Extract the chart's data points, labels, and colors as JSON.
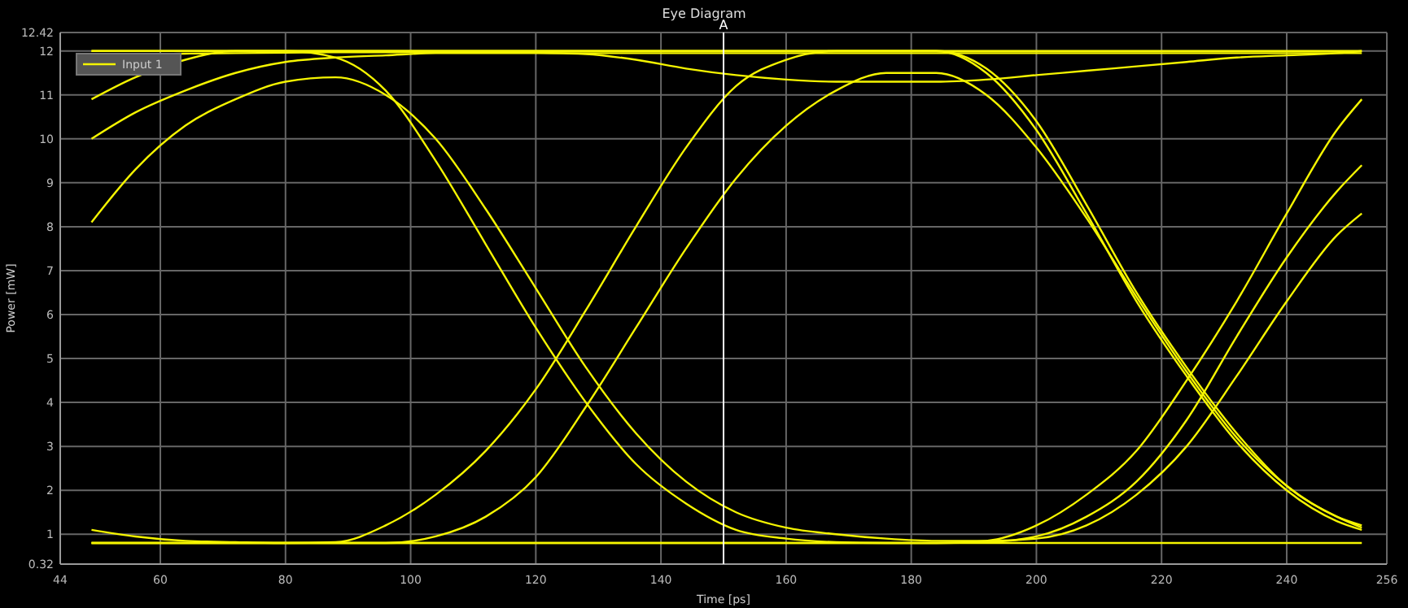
{
  "chart_data": {
    "type": "line",
    "title": "Eye Diagram",
    "xlabel": "Time [ps]",
    "ylabel": "Power [mW]",
    "x": [
      49,
      56,
      64,
      72,
      80,
      88,
      96,
      104,
      112,
      120,
      128,
      136,
      144,
      152,
      160,
      168,
      176,
      184,
      192,
      200,
      208,
      216,
      224,
      232,
      240,
      248,
      252
    ],
    "series": [
      {
        "name": "Input 1",
        "color": "#f5f500",
        "values": [
          12,
          12,
          12,
          12,
          12,
          12,
          12,
          12,
          12,
          12,
          12,
          12,
          12,
          12,
          12,
          12,
          12,
          12,
          12,
          12,
          12,
          12,
          12,
          12,
          12,
          12,
          12
        ]
      },
      {
        "color": "#f5f500",
        "values": [
          0.8,
          0.8,
          0.8,
          0.8,
          0.8,
          0.8,
          0.8,
          0.8,
          0.8,
          0.8,
          0.8,
          0.8,
          0.8,
          0.8,
          0.8,
          0.8,
          0.8,
          0.8,
          0.8,
          0.8,
          0.8,
          0.8,
          0.8,
          0.8,
          0.8,
          0.8,
          0.8
        ]
      },
      {
        "color": "#f5f500",
        "values": [
          1.1,
          0.95,
          0.85,
          0.82,
          0.8,
          0.82,
          1.2,
          1.9,
          2.9,
          4.3,
          6.1,
          8.0,
          9.8,
          11.2,
          11.8,
          12,
          12,
          12,
          11.5,
          10.2,
          8.3,
          6.3,
          4.6,
          3.1,
          2.0,
          1.3,
          1.1
        ]
      },
      {
        "color": "#f5f500",
        "values": [
          10.9,
          11.4,
          11.8,
          12,
          12,
          11.85,
          11.1,
          9.5,
          7.6,
          5.7,
          4.0,
          2.6,
          1.7,
          1.1,
          0.9,
          0.82,
          0.8,
          0.8,
          0.85,
          1.2,
          1.9,
          2.9,
          4.5,
          6.3,
          8.3,
          10.2,
          10.9
        ]
      },
      {
        "color": "#f5f500",
        "values": [
          8.1,
          9.3,
          10.3,
          10.9,
          11.3,
          11.4,
          11.0,
          10.0,
          8.4,
          6.6,
          4.8,
          3.3,
          2.2,
          1.5,
          1.15,
          1.0,
          0.9,
          0.85,
          0.85,
          0.9,
          1.2,
          1.9,
          3.0,
          4.6,
          6.3,
          7.8,
          8.3
        ]
      },
      {
        "color": "#f5f500",
        "values": [
          0.8,
          0.8,
          0.8,
          0.8,
          0.8,
          0.8,
          0.8,
          0.95,
          1.4,
          2.3,
          3.9,
          5.7,
          7.5,
          9.1,
          10.3,
          11.1,
          11.5,
          11.5,
          11.0,
          9.8,
          8.2,
          6.4,
          4.7,
          3.2,
          2.1,
          1.4,
          1.2
        ]
      },
      {
        "color": "#f5f500",
        "values": [
          11.9,
          11.92,
          11.94,
          11.95,
          11.96,
          11.97,
          11.97,
          11.97,
          11.97,
          11.96,
          11.93,
          11.8,
          11.6,
          11.45,
          11.35,
          11.3,
          11.3,
          11.3,
          11.35,
          11.45,
          11.55,
          11.65,
          11.75,
          11.85,
          11.9,
          11.95,
          12
        ]
      },
      {
        "color": "#f5f500",
        "values": [
          10.0,
          10.6,
          11.1,
          11.5,
          11.75,
          11.85,
          11.9,
          11.95,
          11.95,
          11.95,
          11.95,
          11.95,
          11.95,
          11.95,
          11.95,
          11.95,
          11.95,
          11.95,
          11.95,
          11.95,
          11.95,
          11.95,
          11.95,
          11.95,
          11.95,
          11.95,
          11.95
        ]
      },
      {
        "color": "#f5f500",
        "values": [
          0.8,
          0.8,
          0.8,
          0.8,
          0.8,
          0.8,
          0.8,
          0.8,
          0.8,
          0.8,
          0.8,
          0.8,
          0.8,
          0.8,
          0.8,
          0.8,
          0.8,
          0.8,
          0.82,
          0.95,
          1.4,
          2.2,
          3.6,
          5.5,
          7.3,
          8.8,
          9.4
        ]
      },
      {
        "color": "#f5f500",
        "values": [
          12,
          12,
          12,
          12,
          12,
          12,
          12,
          12,
          12,
          12,
          12,
          12,
          12,
          12,
          12,
          12,
          12,
          12,
          11.6,
          10.4,
          8.5,
          6.5,
          4.8,
          3.3,
          2.1,
          1.4,
          1.15
        ]
      }
    ],
    "xlim": [
      44,
      256
    ],
    "xticks": [
      44,
      60,
      80,
      100,
      120,
      140,
      160,
      180,
      200,
      220,
      240,
      256
    ],
    "ylim": [
      0.32,
      12.42
    ],
    "yticks": [
      0.32,
      1,
      2,
      3,
      4,
      5,
      6,
      7,
      8,
      9,
      10,
      11,
      12,
      12.42
    ],
    "ref_lines": [
      {
        "axis": "x",
        "value": 150,
        "label": "A",
        "color": "#ffffff"
      }
    ],
    "grid": true,
    "legend": "top left",
    "marker": "none",
    "line_style": "solid"
  }
}
